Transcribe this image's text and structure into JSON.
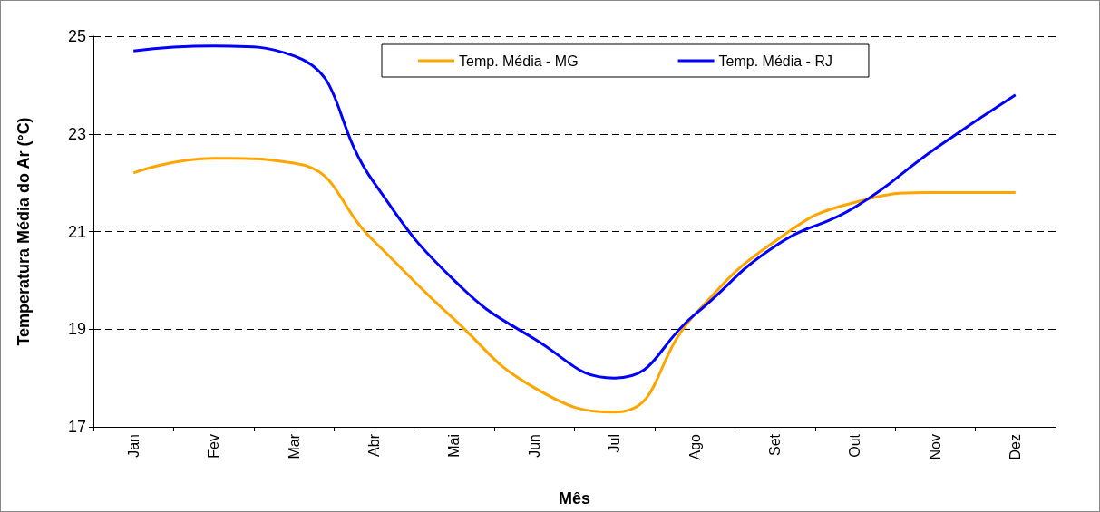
{
  "chart_data": {
    "type": "line",
    "xlabel": "Mês",
    "ylabel": "Temperatura Média do Ar (°C)",
    "categories": [
      "Jan",
      "Fev",
      "Mar",
      "Abr",
      "Mai",
      "Jun",
      "Jul",
      "Ago",
      "Set",
      "Out",
      "Nov",
      "Dez"
    ],
    "series": [
      {
        "name": "Temp. Média - MG",
        "color": "#ffa500",
        "values": [
          22.2,
          22.5,
          22.4,
          20.8,
          19.2,
          17.8,
          17.3,
          19.3,
          20.8,
          21.6,
          21.8,
          21.8
        ]
      },
      {
        "name": "Temp. Média - RJ",
        "color": "#0000ff",
        "values": [
          24.7,
          24.8,
          24.6,
          22.0,
          20.0,
          18.8,
          18.0,
          19.3,
          20.7,
          21.5,
          22.7,
          23.8
        ]
      }
    ],
    "ylim": [
      17,
      25
    ],
    "yticks": [
      17,
      19,
      21,
      23,
      25
    ],
    "grid": "y",
    "legend": "top",
    "marker": "none",
    "line_style": "solid"
  }
}
